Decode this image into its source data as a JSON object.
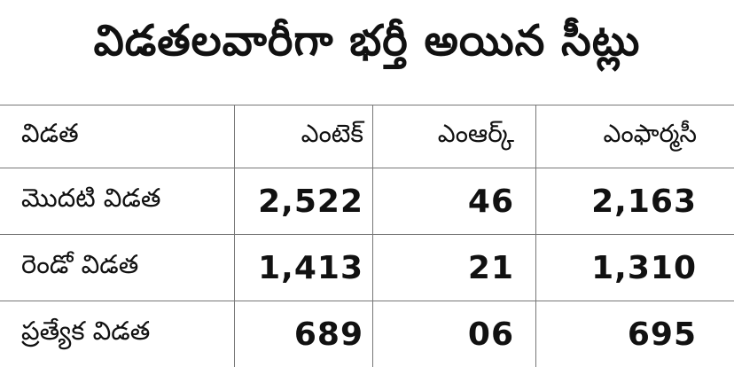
{
  "title": "విడతలవారీగా భర్తీ అయిన సీట్లు",
  "table": {
    "headers": [
      "విడత",
      "ఎంటెక్",
      "ఎంఆర్క్",
      "ఎంఫార్మసీ"
    ],
    "rows": [
      [
        "మొదటి విడత",
        "2,522",
        "46",
        "2,163"
      ],
      [
        "రెండో విడత",
        "1,413",
        "21",
        "1,310"
      ],
      [
        "ప్రత్యేక విడత",
        "689",
        "06",
        "695"
      ]
    ]
  }
}
